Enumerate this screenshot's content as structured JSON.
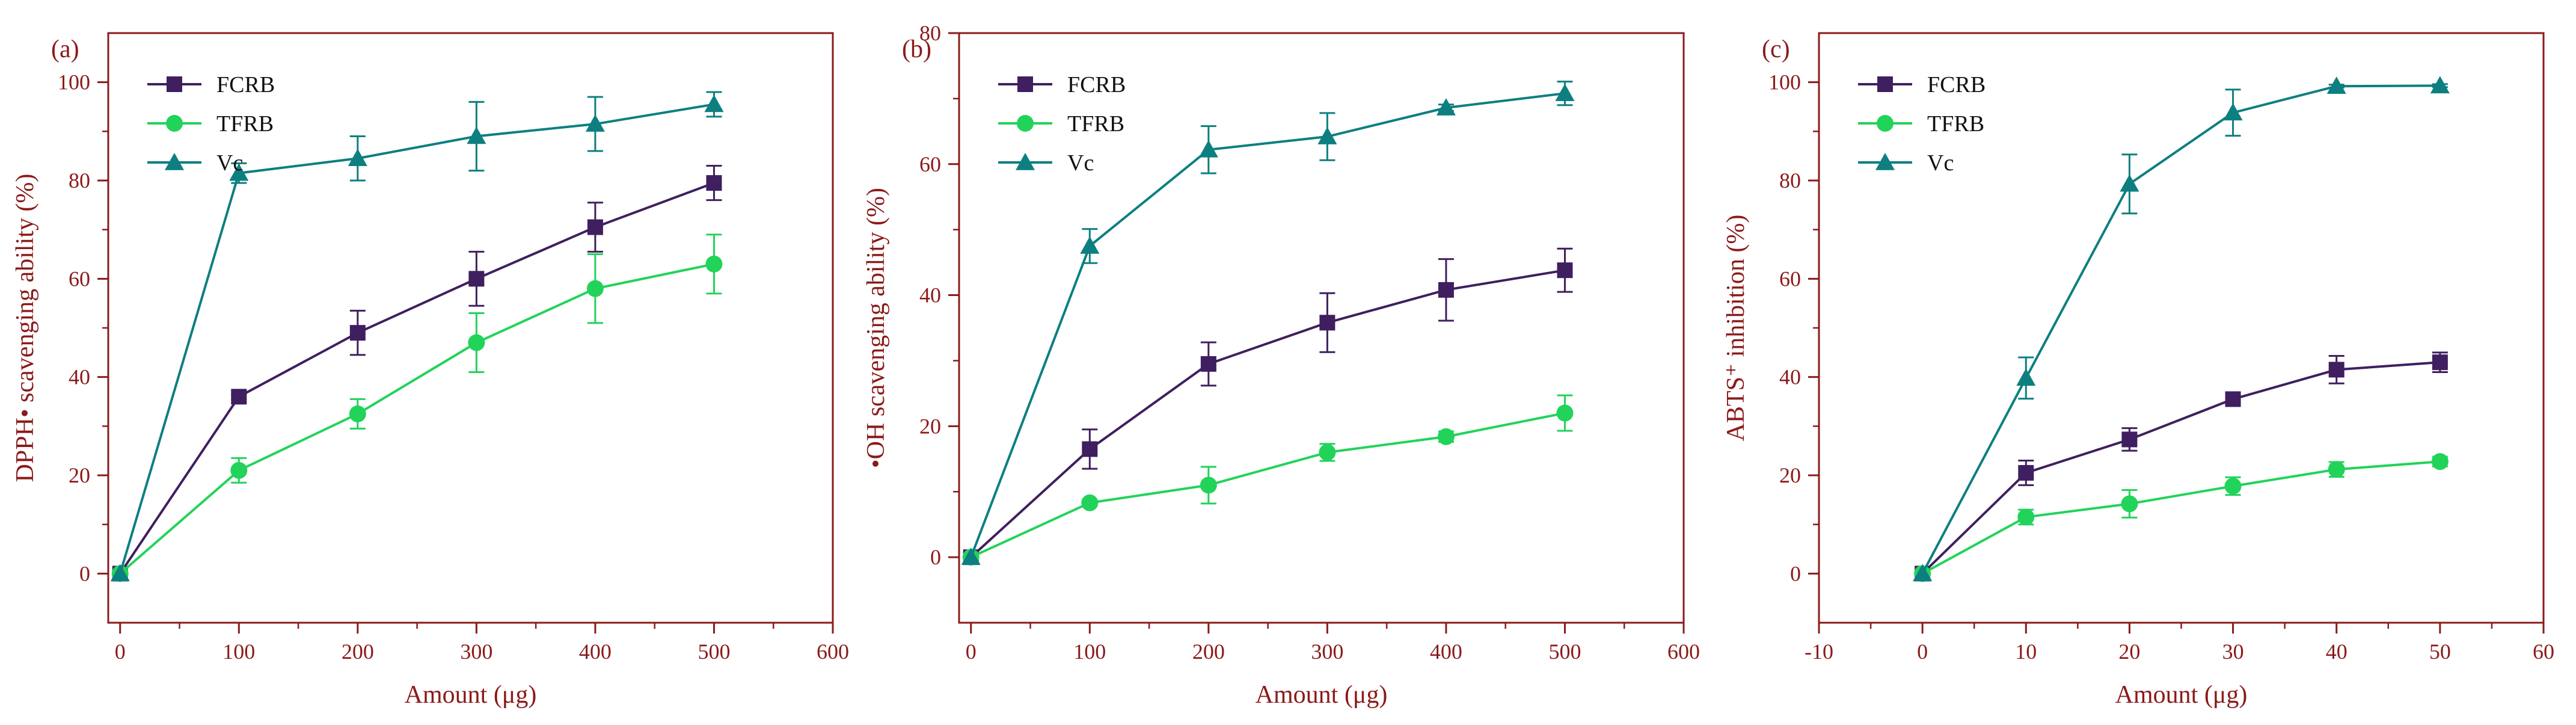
{
  "figure": {
    "axis_color": "#8b1a1a",
    "series_styles": [
      {
        "name": "FCRB",
        "color": "#3f1f5f",
        "marker": "square"
      },
      {
        "name": "TFRB",
        "color": "#22d35a",
        "marker": "circle"
      },
      {
        "name": "Vc",
        "color": "#0d7f80",
        "marker": "triangle"
      }
    ]
  },
  "chart_data": [
    {
      "type": "line",
      "panel_label": "(a)",
      "title": "",
      "xlabel": "Amount (μg)",
      "ylabel": "DPPH• scavenging ability (%)",
      "xlim": [
        -10,
        600
      ],
      "ylim": [
        -10,
        110
      ],
      "xticks": [
        0,
        100,
        200,
        300,
        400,
        500,
        600
      ],
      "yticks": [
        0,
        20,
        40,
        60,
        80,
        100
      ],
      "legend": "top-left",
      "x": [
        0,
        100,
        200,
        300,
        400,
        500
      ],
      "series": [
        {
          "name": "FCRB",
          "values": [
            0,
            36,
            49,
            60,
            70.5,
            79.5
          ],
          "errors": [
            0,
            0.5,
            4.5,
            5.5,
            5,
            3.5
          ]
        },
        {
          "name": "TFRB",
          "values": [
            0,
            21,
            32.5,
            47,
            58,
            63
          ],
          "errors": [
            0,
            2.5,
            3,
            6,
            7,
            6
          ]
        },
        {
          "name": "Vc",
          "values": [
            0,
            81.5,
            84.5,
            89,
            91.5,
            95.5
          ],
          "errors": [
            0,
            2,
            4.5,
            7,
            5.5,
            2.5
          ]
        }
      ]
    },
    {
      "type": "line",
      "panel_label": "(b)",
      "title": "",
      "xlabel": "Amount (μg)",
      "ylabel": "•OH scavenging ability (%)",
      "xlim": [
        -10,
        600
      ],
      "ylim": [
        -10,
        80
      ],
      "xticks": [
        0,
        100,
        200,
        300,
        400,
        500,
        600
      ],
      "yticks": [
        0,
        20,
        40,
        60,
        80
      ],
      "legend": "top-left",
      "x": [
        0,
        100,
        200,
        300,
        400,
        500
      ],
      "series": [
        {
          "name": "FCRB",
          "values": [
            0,
            16.5,
            29.5,
            35.8,
            40.8,
            43.8
          ],
          "errors": [
            0,
            3,
            3.3,
            4.5,
            4.7,
            3.3
          ]
        },
        {
          "name": "TFRB",
          "values": [
            0,
            8.3,
            11,
            16,
            18.4,
            22
          ],
          "errors": [
            0,
            0.5,
            2.8,
            1.3,
            0.8,
            2.7
          ]
        },
        {
          "name": "Vc",
          "values": [
            0,
            47.5,
            62.2,
            64.2,
            68.6,
            70.8
          ],
          "errors": [
            0,
            2.6,
            3.6,
            3.6,
            0.5,
            1.8
          ]
        }
      ]
    },
    {
      "type": "line",
      "panel_label": "(c)",
      "title": "",
      "xlabel": "Amount (μg)",
      "ylabel": "ABTS⁺ inhibition (%)",
      "xlim": [
        -10,
        60
      ],
      "ylim": [
        -10,
        110
      ],
      "xticks": [
        -10,
        0,
        10,
        20,
        30,
        40,
        50,
        60
      ],
      "yticks": [
        0,
        20,
        40,
        60,
        80,
        100
      ],
      "legend": "top-left",
      "x": [
        0,
        10,
        20,
        30,
        40,
        50
      ],
      "series": [
        {
          "name": "FCRB",
          "values": [
            0,
            20.5,
            27.3,
            35.5,
            41.5,
            43
          ],
          "errors": [
            0,
            2.5,
            2.3,
            1,
            2.8,
            2
          ]
        },
        {
          "name": "TFRB",
          "values": [
            0,
            11.5,
            14.2,
            17.8,
            21.2,
            22.8
          ],
          "errors": [
            0,
            1.5,
            2.8,
            1.8,
            1.5,
            1
          ]
        },
        {
          "name": "Vc",
          "values": [
            0,
            39.8,
            79.3,
            93.8,
            99.2,
            99.3
          ],
          "errors": [
            0,
            4.2,
            6,
            4.7,
            0.3,
            0.3
          ]
        }
      ]
    }
  ]
}
